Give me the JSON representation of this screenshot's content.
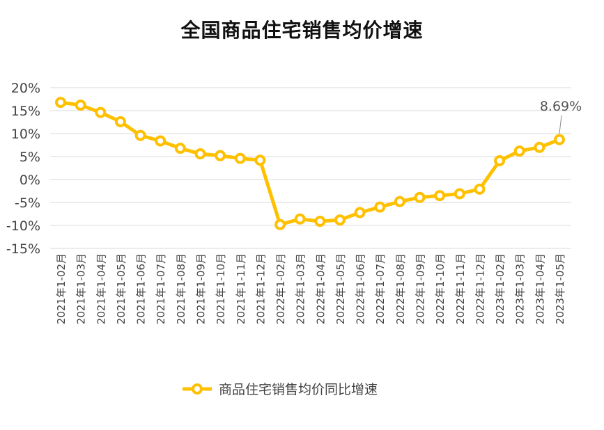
{
  "chart_data": {
    "type": "line",
    "title": "全国商品住宅销售均价增速",
    "categories": [
      "2021年1-02月",
      "2021年1-03月",
      "2021年1-04月",
      "2021年1-05月",
      "2021年1-06月",
      "2021年1-07月",
      "2021年1-08月",
      "2021年1-09月",
      "2021年1-10月",
      "2021年1-11月",
      "2021年1-12月",
      "2022年1-02月",
      "2022年1-03月",
      "2022年1-04月",
      "2022年1-05月",
      "2022年1-06月",
      "2022年1-07月",
      "2022年1-08月",
      "2022年1-09月",
      "2022年1-10月",
      "2022年1-11月",
      "2022年1-12月",
      "2023年1-02月",
      "2023年1-03月",
      "2023年1-04月",
      "2023年1-05月"
    ],
    "series": [
      {
        "name": "商品住宅销售均价同比增速",
        "values": [
          16.8,
          16.2,
          14.6,
          12.6,
          9.6,
          8.4,
          6.8,
          5.6,
          5.2,
          4.6,
          4.2,
          -9.8,
          -8.6,
          -9.1,
          -8.8,
          -7.2,
          -6.0,
          -4.8,
          -3.9,
          -3.5,
          -3.1,
          -2.1,
          4.1,
          6.2,
          7.0,
          8.69
        ],
        "color": "#ffc000"
      }
    ],
    "yticks": [
      "20%",
      "15%",
      "10%",
      "5%",
      "0%",
      "-5%",
      "-10%",
      "-15%"
    ],
    "ylim": [
      -15,
      20
    ],
    "grid": true,
    "legend_position": "bottom-center",
    "annotation": {
      "text": "8.69%",
      "index": 25
    }
  }
}
